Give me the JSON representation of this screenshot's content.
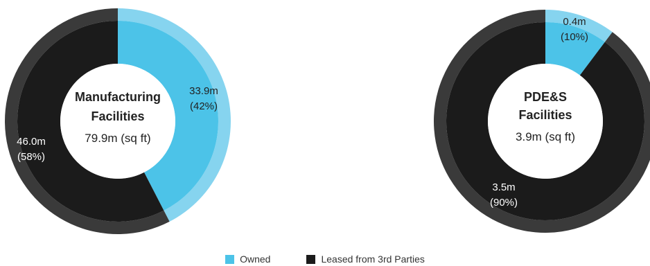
{
  "colors": {
    "owned": "#4cc3e8",
    "owned_outer": "#86d4ef",
    "leased": "#1b1b1b",
    "leased_outer": "#3a3a3a",
    "inner_text": "#222222",
    "slice_label": "#ffffff",
    "slice_label_dark": "#222222"
  },
  "legend": [
    {
      "label": "Owned",
      "color": "#4cc3e8"
    },
    {
      "label": "Leased from 3rd Parties",
      "color": "#1b1b1b"
    }
  ],
  "chart_data": [
    {
      "type": "pie",
      "title_lines": [
        "Manufacturing",
        "Facilities"
      ],
      "total_label": "79.9m (sq ft)",
      "series": [
        {
          "name": "Owned",
          "value": 33.9,
          "percent": 42,
          "label_lines": [
            "33.9m",
            "(42%)"
          ]
        },
        {
          "name": "Leased from 3rd Parties",
          "value": 46.0,
          "percent": 58,
          "label_lines": [
            "46.0m",
            "(58%)"
          ]
        }
      ]
    },
    {
      "type": "pie",
      "title_lines": [
        "PDE&S",
        "Facilities"
      ],
      "total_label": "3.9m (sq ft)",
      "series": [
        {
          "name": "Owned",
          "value": 0.4,
          "percent": 10,
          "label_lines": [
            "0.4m",
            "(10%)"
          ]
        },
        {
          "name": "Leased from 3rd Parties",
          "value": 3.5,
          "percent": 90,
          "label_lines": [
            "3.5m",
            "(90%)"
          ]
        }
      ]
    }
  ]
}
